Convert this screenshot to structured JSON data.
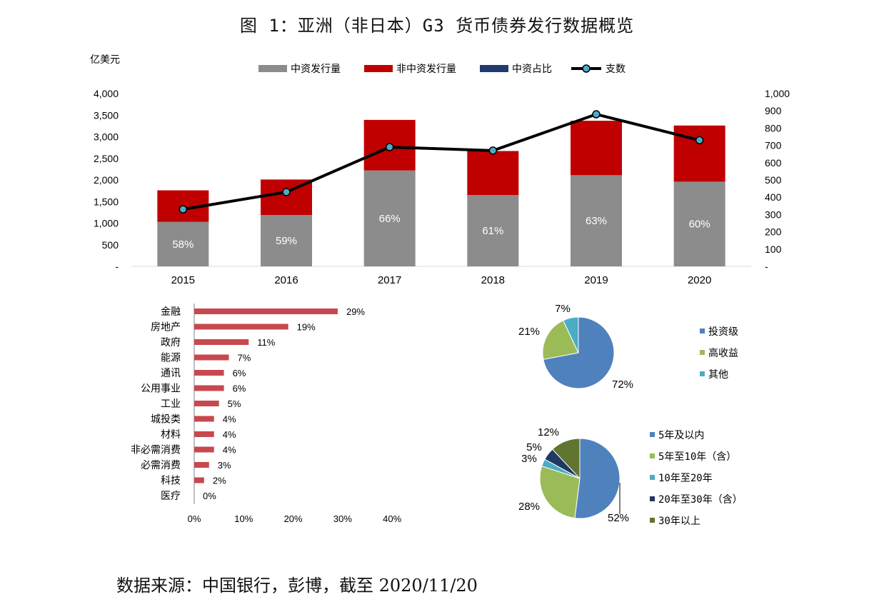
{
  "title": "图 1：亚洲（非日本）G3 货币债券发行数据概览",
  "source": "数据来源：中国银行，彭博，截至 2020/11/20",
  "colors": {
    "gray": "#8c8c8c",
    "red": "#c00000",
    "navy": "#1f3b6d",
    "line": "#000000",
    "marker": "#4bacc6",
    "hbar": "#c8484f",
    "blue": "#4f81bd",
    "green": "#9bbb59",
    "teal": "#4bacc6",
    "darknavy": "#1f3864",
    "olive": "#5f7530"
  },
  "chart_data": [
    {
      "type": "bar",
      "subtype": "stacked-bar-with-line",
      "unit_label": "亿美元",
      "categories": [
        "2015",
        "2016",
        "2017",
        "2018",
        "2019",
        "2020"
      ],
      "series": [
        {
          "name": "中资发行量",
          "values": [
            1030,
            1190,
            2220,
            1650,
            2110,
            1960
          ],
          "color": "gray"
        },
        {
          "name": "非中资发行量",
          "values": [
            730,
            820,
            1170,
            1020,
            1260,
            1300
          ],
          "color": "red"
        },
        {
          "name": "中资占比",
          "values": [
            "58%",
            "59%",
            "66%",
            "61%",
            "63%",
            "60%"
          ],
          "color": "navy"
        },
        {
          "name": "支数",
          "values": [
            330,
            430,
            690,
            670,
            880,
            730
          ],
          "axis": "right",
          "color": "line"
        }
      ],
      "ylim": [
        0,
        4000
      ],
      "y_ticks": [
        "-",
        "500",
        "1,000",
        "1,500",
        "2,000",
        "2,500",
        "3,000",
        "3,500",
        "4,000"
      ],
      "y2lim": [
        0,
        1000
      ],
      "y2_ticks": [
        "-",
        "100",
        "200",
        "300",
        "400",
        "500",
        "600",
        "700",
        "800",
        "900",
        "1,000"
      ],
      "legend_position": "top"
    },
    {
      "type": "bar",
      "orientation": "horizontal",
      "categories": [
        "金融",
        "房地产",
        "政府",
        "能源",
        "通讯",
        "公用事业",
        "工业",
        "城投类",
        "材料",
        "非必需消费",
        "必需消费",
        "科技",
        "医疗"
      ],
      "values": [
        29,
        19,
        11,
        7,
        6,
        6,
        5,
        4,
        4,
        4,
        3,
        2,
        0
      ],
      "value_labels": [
        "29%",
        "19%",
        "11%",
        "7%",
        "6%",
        "6%",
        "5%",
        "4%",
        "4%",
        "4%",
        "3%",
        "2%",
        "0%"
      ],
      "xlim": [
        0,
        40
      ],
      "x_ticks": [
        "0%",
        "10%",
        "20%",
        "30%",
        "40%"
      ]
    },
    {
      "type": "pie",
      "labels": [
        "投资级",
        "高收益",
        "其他"
      ],
      "values": [
        72,
        21,
        7
      ],
      "value_labels": [
        "72%",
        "21%",
        "7%"
      ],
      "colors": [
        "blue",
        "green",
        "teal"
      ],
      "legend_position": "right"
    },
    {
      "type": "pie",
      "labels": [
        "5年及以内",
        "5年至10年（含）",
        "10年至20年",
        "20年至30年（含）",
        "30年以上"
      ],
      "values": [
        52,
        28,
        3,
        5,
        12
      ],
      "value_labels": [
        "52%",
        "28%",
        "3%",
        "5%",
        "12%"
      ],
      "colors": [
        "blue",
        "green",
        "teal",
        "darknavy",
        "olive"
      ],
      "legend_position": "right"
    }
  ]
}
